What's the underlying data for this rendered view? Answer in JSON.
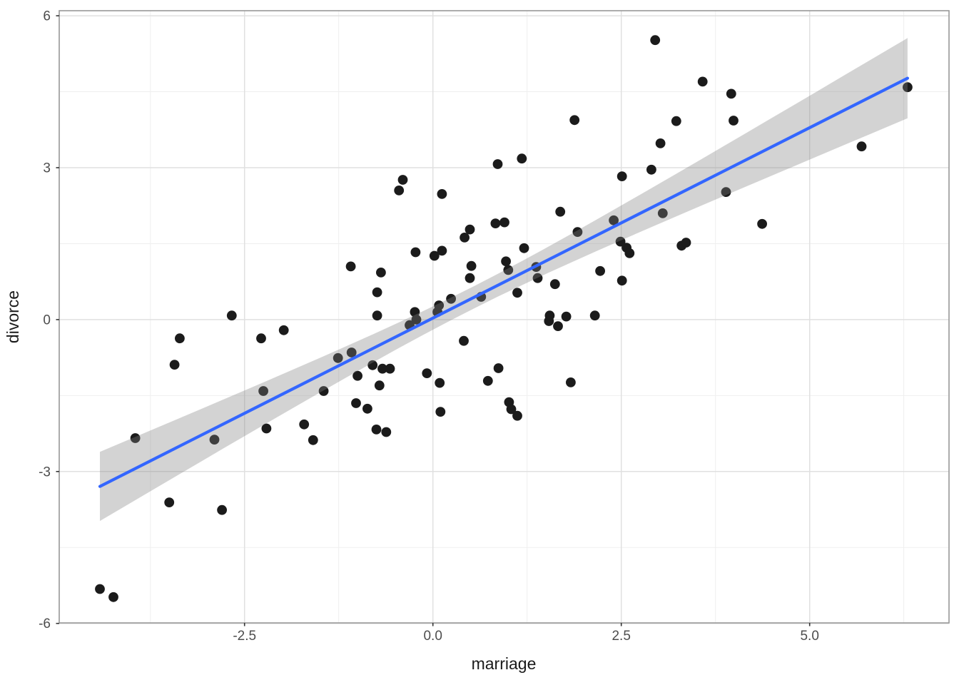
{
  "chart_data": {
    "type": "scatter",
    "title": "",
    "xlabel": "marriage",
    "ylabel": "divorce",
    "legend": "none",
    "grid": "on",
    "xlim": [
      -4.96,
      6.85
    ],
    "ylim": [
      -5.99,
      6.1
    ],
    "x_ticks": [
      -2.5,
      0.0,
      2.5,
      5.0
    ],
    "x_tick_labels": [
      "-2.5",
      "0.0",
      "2.5",
      "5.0"
    ],
    "x_minor_ticks": [
      -3.75,
      -1.25,
      1.25,
      3.75,
      6.25
    ],
    "y_ticks": [
      -6,
      -3,
      0,
      3,
      6
    ],
    "y_tick_labels": [
      "-6",
      "-3",
      "0",
      "3",
      "6"
    ],
    "y_minor_ticks": [
      -4.5,
      -1.5,
      1.5,
      4.5
    ],
    "points": [
      [
        -4.42,
        -5.32
      ],
      [
        -4.24,
        -5.48
      ],
      [
        -3.95,
        -2.34
      ],
      [
        -3.5,
        -3.61
      ],
      [
        -3.43,
        -0.89
      ],
      [
        -3.36,
        -0.37
      ],
      [
        -2.9,
        -2.37
      ],
      [
        -2.8,
        -3.76
      ],
      [
        -2.67,
        0.08
      ],
      [
        -2.28,
        -0.37
      ],
      [
        -2.25,
        -1.41
      ],
      [
        -2.21,
        -2.15
      ],
      [
        -1.98,
        -0.21
      ],
      [
        -1.71,
        -2.07
      ],
      [
        -1.59,
        -2.38
      ],
      [
        -1.45,
        -1.41
      ],
      [
        -1.26,
        -0.76
      ],
      [
        -1.09,
        1.05
      ],
      [
        -1.08,
        -0.65
      ],
      [
        -1.02,
        -1.65
      ],
      [
        -1.0,
        -1.11
      ],
      [
        -0.87,
        -1.76
      ],
      [
        -0.8,
        -0.9
      ],
      [
        -0.75,
        -2.17
      ],
      [
        -0.74,
        0.54
      ],
      [
        -0.74,
        0.08
      ],
      [
        -0.71,
        -1.3
      ],
      [
        -0.69,
        0.93
      ],
      [
        -0.67,
        -0.97
      ],
      [
        -0.62,
        -2.22
      ],
      [
        -0.57,
        -0.97
      ],
      [
        -0.45,
        2.55
      ],
      [
        -0.4,
        2.76
      ],
      [
        -0.31,
        -0.11
      ],
      [
        -0.24,
        0.15
      ],
      [
        -0.23,
        1.33
      ],
      [
        -0.22,
        0.0
      ],
      [
        -0.08,
        -1.06
      ],
      [
        0.02,
        1.26
      ],
      [
        0.06,
        0.15
      ],
      [
        0.08,
        0.28
      ],
      [
        0.09,
        -1.25
      ],
      [
        0.1,
        -1.82
      ],
      [
        0.12,
        2.48
      ],
      [
        0.12,
        1.36
      ],
      [
        0.24,
        0.41
      ],
      [
        0.41,
        -0.42
      ],
      [
        0.42,
        1.62
      ],
      [
        0.49,
        1.78
      ],
      [
        0.49,
        0.82
      ],
      [
        0.51,
        1.06
      ],
      [
        0.64,
        0.45
      ],
      [
        0.73,
        -1.21
      ],
      [
        0.83,
        1.9
      ],
      [
        0.86,
        3.07
      ],
      [
        0.87,
        -0.96
      ],
      [
        0.95,
        1.92
      ],
      [
        0.97,
        1.15
      ],
      [
        1.0,
        0.98
      ],
      [
        1.01,
        -1.63
      ],
      [
        1.04,
        -1.77
      ],
      [
        1.12,
        0.53
      ],
      [
        1.12,
        -1.9
      ],
      [
        1.18,
        3.18
      ],
      [
        1.21,
        1.41
      ],
      [
        1.37,
        1.04
      ],
      [
        1.39,
        0.82
      ],
      [
        1.54,
        -0.03
      ],
      [
        1.55,
        0.08
      ],
      [
        1.62,
        0.7
      ],
      [
        1.66,
        -0.13
      ],
      [
        1.69,
        2.13
      ],
      [
        1.77,
        0.06
      ],
      [
        1.83,
        -1.24
      ],
      [
        1.88,
        3.94
      ],
      [
        1.92,
        1.73
      ],
      [
        2.15,
        0.08
      ],
      [
        2.22,
        0.96
      ],
      [
        2.4,
        1.96
      ],
      [
        2.49,
        1.54
      ],
      [
        2.51,
        2.83
      ],
      [
        2.51,
        0.77
      ],
      [
        2.57,
        1.42
      ],
      [
        2.61,
        1.31
      ],
      [
        2.9,
        2.96
      ],
      [
        2.95,
        5.52
      ],
      [
        3.02,
        3.48
      ],
      [
        3.05,
        2.1
      ],
      [
        3.23,
        3.92
      ],
      [
        3.3,
        1.46
      ],
      [
        3.36,
        1.52
      ],
      [
        3.58,
        4.7
      ],
      [
        3.89,
        2.52
      ],
      [
        3.96,
        4.46
      ],
      [
        3.99,
        3.93
      ],
      [
        4.37,
        1.89
      ],
      [
        5.69,
        3.42
      ],
      [
        6.3,
        4.59
      ]
    ],
    "smooth": {
      "method": "linear",
      "slope": 0.752,
      "intercept": 0.03,
      "x_from": -4.42,
      "x_to": 6.3,
      "ci_halfwidth": {
        "a": 0.0484,
        "b": 0.01725,
        "x_center": 0.5
      }
    },
    "colors": {
      "point": "#1B1B1B",
      "line": "#3366FF",
      "band": "rgba(128,128,128,0.35)",
      "grid_major": "#E0E0E0",
      "grid_minor": "#EFEFEF",
      "panel_border": "#989898",
      "tick": "#333333",
      "tick_label": "#4D4D4D",
      "axis_title": "#1A1A1A",
      "background": "#FFFFFF"
    }
  }
}
